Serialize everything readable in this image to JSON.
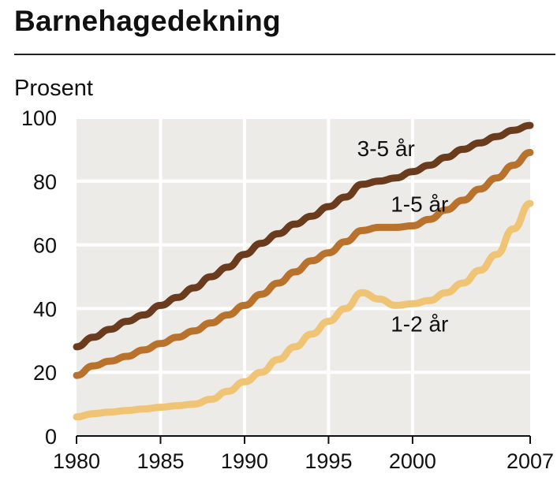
{
  "header": {
    "title": "Barnehagedekning",
    "unit_label": "Prosent"
  },
  "chart_data": {
    "type": "line",
    "title": "Barnehagedekning",
    "xlabel": "",
    "ylabel": "Prosent",
    "xlim": [
      1980,
      2007
    ],
    "ylim": [
      0,
      100
    ],
    "x_ticks": [
      1980,
      1985,
      1990,
      1995,
      2000,
      2007
    ],
    "y_ticks": [
      0,
      20,
      40,
      60,
      80,
      100
    ],
    "x_tick_labels": [
      "1980",
      "1985",
      "1990",
      "1995",
      "2000",
      "2007"
    ],
    "y_tick_labels": [
      "0",
      "20",
      "40",
      "60",
      "80",
      "100"
    ],
    "grid": true,
    "background": "#ecebe8",
    "x": [
      1980,
      1981,
      1982,
      1983,
      1984,
      1985,
      1986,
      1987,
      1988,
      1989,
      1990,
      1991,
      1992,
      1993,
      1994,
      1995,
      1996,
      1997,
      1998,
      1999,
      2000,
      2001,
      2002,
      2003,
      2004,
      2005,
      2006,
      2007
    ],
    "series": [
      {
        "name": "3-5 år",
        "color": "#6b3b1d",
        "values": [
          28,
          31,
          33.5,
          36,
          38,
          41,
          43.5,
          46.5,
          50,
          53,
          57,
          60.5,
          63.5,
          66.5,
          69,
          72,
          75,
          79,
          80,
          81,
          83,
          85,
          87.5,
          90,
          92,
          94,
          96,
          97.5
        ]
      },
      {
        "name": "1-5 år",
        "color": "#b8722c",
        "values": [
          19,
          22,
          23.5,
          25,
          27,
          29,
          31,
          33,
          35.5,
          38,
          41,
          44.5,
          48,
          51.5,
          55,
          57.5,
          61,
          64.5,
          65.5,
          65.5,
          66,
          68,
          71,
          74,
          77.5,
          81,
          85,
          89
        ]
      },
      {
        "name": "1-2 år",
        "color": "#f0c475",
        "values": [
          6,
          7,
          7.5,
          8,
          8.5,
          9,
          9.5,
          10,
          11.5,
          14,
          17,
          20,
          24,
          28,
          32,
          36,
          40,
          45,
          43,
          41,
          41.5,
          42.5,
          45,
          48,
          52,
          57,
          65,
          73
        ]
      }
    ]
  }
}
